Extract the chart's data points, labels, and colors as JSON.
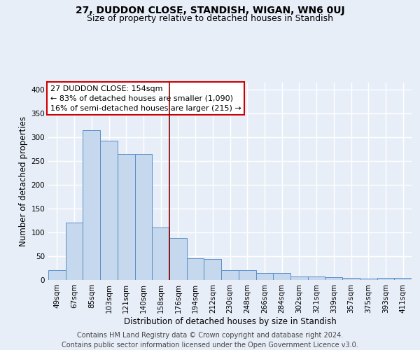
{
  "title1": "27, DUDDON CLOSE, STANDISH, WIGAN, WN6 0UJ",
  "title2": "Size of property relative to detached houses in Standish",
  "xlabel": "Distribution of detached houses by size in Standish",
  "ylabel": "Number of detached properties",
  "footer": "Contains HM Land Registry data © Crown copyright and database right 2024.\nContains public sector information licensed under the Open Government Licence v3.0.",
  "bar_labels": [
    "49sqm",
    "67sqm",
    "85sqm",
    "103sqm",
    "121sqm",
    "140sqm",
    "158sqm",
    "176sqm",
    "194sqm",
    "212sqm",
    "230sqm",
    "248sqm",
    "266sqm",
    "284sqm",
    "302sqm",
    "321sqm",
    "339sqm",
    "357sqm",
    "375sqm",
    "393sqm",
    "411sqm"
  ],
  "bar_values": [
    20,
    120,
    315,
    293,
    265,
    265,
    110,
    88,
    45,
    44,
    20,
    21,
    15,
    15,
    8,
    7,
    6,
    5,
    3,
    5,
    4
  ],
  "bar_color": "#c5d8ed",
  "bar_edge_color": "#5b8ec4",
  "vline_x": 7.0,
  "vline_color": "#8B0000",
  "annotation_text": "27 DUDDON CLOSE: 154sqm\n← 83% of detached houses are smaller (1,090)\n16% of semi-detached houses are larger (215) →",
  "box_color": "#ffffff",
  "box_edge_color": "#cc0000",
  "ylim": [
    0,
    415
  ],
  "yticks": [
    0,
    50,
    100,
    150,
    200,
    250,
    300,
    350,
    400
  ],
  "bg_color": "#e8eef8",
  "plot_bg_color": "#e8eef8",
  "grid_color": "#ffffff",
  "title1_fontsize": 10,
  "title2_fontsize": 9,
  "xlabel_fontsize": 8.5,
  "ylabel_fontsize": 8.5,
  "tick_fontsize": 7.5,
  "annotation_fontsize": 8,
  "footer_fontsize": 7
}
